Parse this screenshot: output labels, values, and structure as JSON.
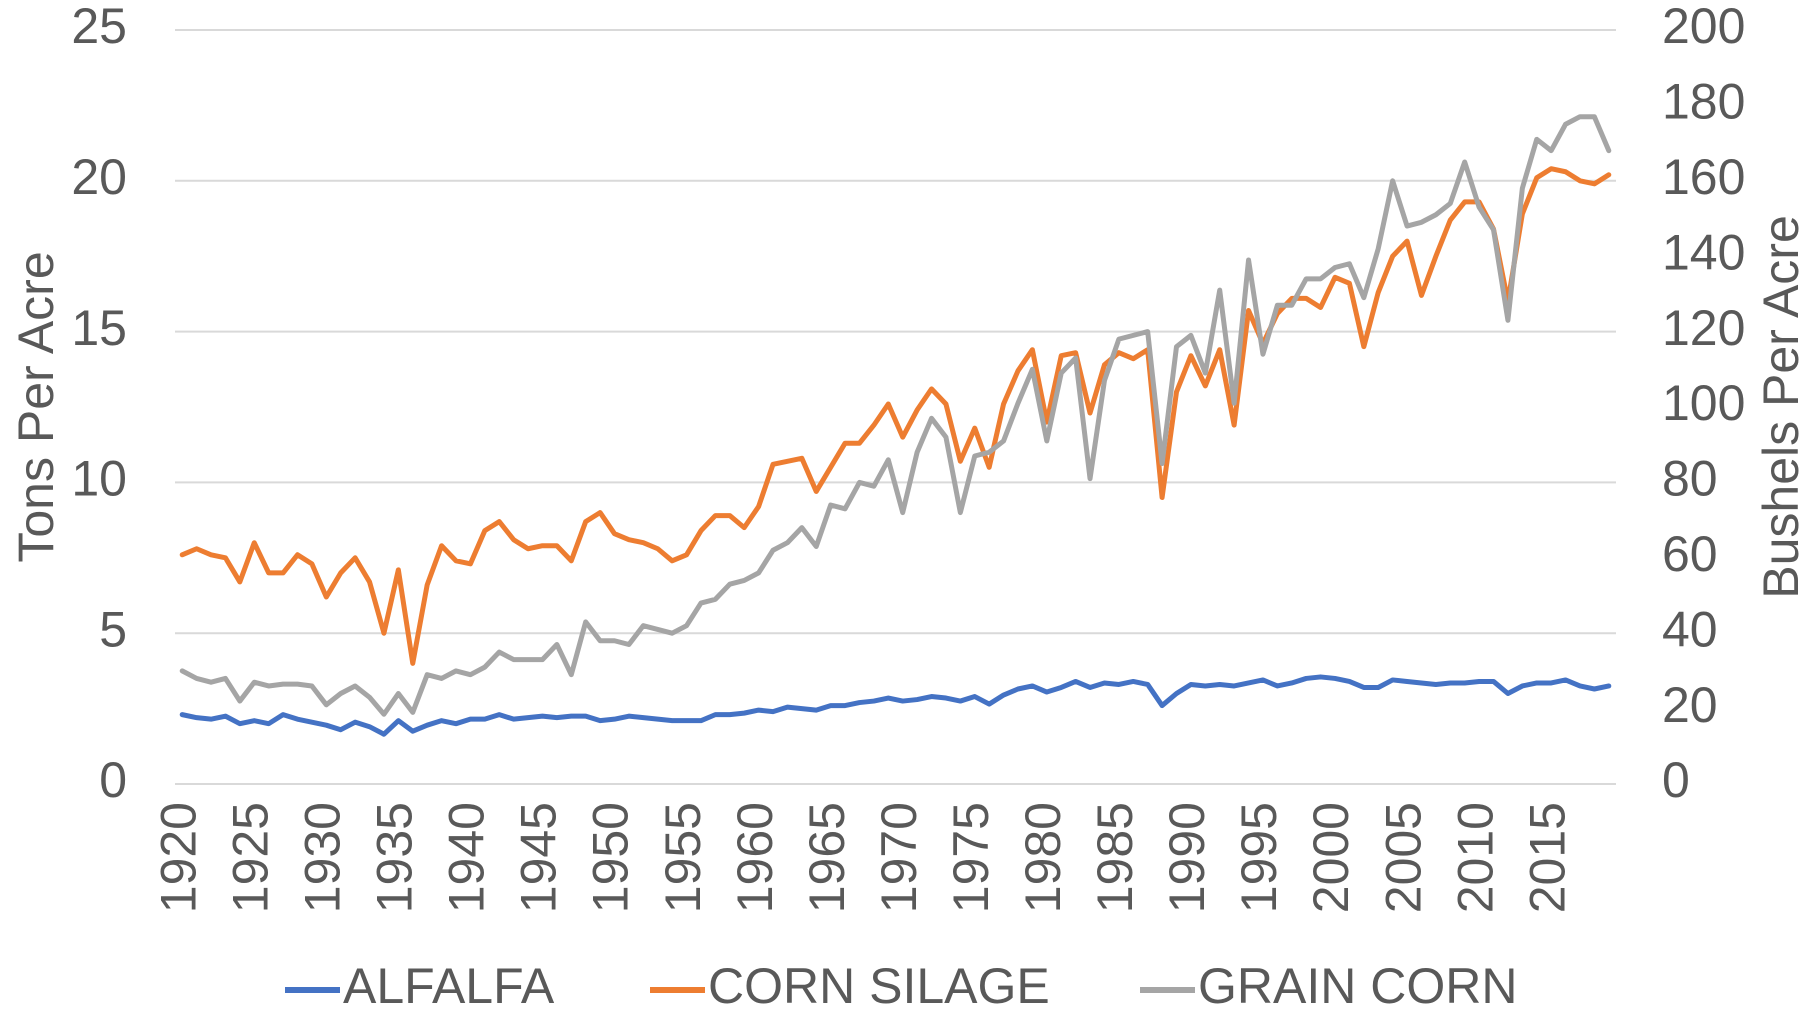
{
  "chart_data": {
    "type": "line",
    "ylabel": "Tons Per Acre",
    "y2label": "Bushels Per Acre",
    "x": [
      1920,
      1921,
      1922,
      1923,
      1924,
      1925,
      1926,
      1927,
      1928,
      1929,
      1930,
      1931,
      1932,
      1933,
      1934,
      1935,
      1936,
      1937,
      1938,
      1939,
      1940,
      1941,
      1942,
      1943,
      1944,
      1945,
      1946,
      1947,
      1948,
      1949,
      1950,
      1951,
      1952,
      1953,
      1954,
      1955,
      1956,
      1957,
      1958,
      1959,
      1960,
      1961,
      1962,
      1963,
      1964,
      1965,
      1966,
      1967,
      1968,
      1969,
      1970,
      1971,
      1972,
      1973,
      1974,
      1975,
      1976,
      1977,
      1978,
      1979,
      1980,
      1981,
      1982,
      1983,
      1984,
      1985,
      1986,
      1987,
      1988,
      1989,
      1990,
      1991,
      1992,
      1993,
      1994,
      1995,
      1996,
      1997,
      1998,
      1999,
      2000,
      2001,
      2002,
      2003,
      2004,
      2005,
      2006,
      2007,
      2008,
      2009,
      2010,
      2011,
      2012,
      2013,
      2014,
      2015,
      2016,
      2017,
      2018,
      2019
    ],
    "xlim": [
      1919.5,
      2019.5
    ],
    "xticks": [
      1920,
      1925,
      1930,
      1935,
      1940,
      1945,
      1950,
      1955,
      1960,
      1965,
      1970,
      1975,
      1980,
      1985,
      1990,
      1995,
      2000,
      2005,
      2010,
      2015
    ],
    "ylim": [
      0,
      25
    ],
    "yticks": [
      0,
      5,
      10,
      15,
      20,
      25
    ],
    "y2lim": [
      0,
      200
    ],
    "y2ticks": [
      0,
      20,
      40,
      60,
      80,
      100,
      120,
      140,
      160,
      180,
      200
    ],
    "grid": true,
    "legend": "bottom",
    "series": [
      {
        "name": "ALFALFA",
        "color": "#4472c4",
        "values": [
          2.3,
          2.2,
          2.15,
          2.25,
          2.0,
          2.1,
          2.0,
          2.3,
          2.15,
          2.05,
          1.95,
          1.8,
          2.05,
          1.9,
          1.65,
          2.1,
          1.75,
          1.95,
          2.1,
          2.0,
          2.15,
          2.15,
          2.3,
          2.15,
          2.2,
          2.25,
          2.2,
          2.25,
          2.25,
          2.1,
          2.15,
          2.25,
          2.2,
          2.15,
          2.1,
          2.1,
          2.1,
          2.3,
          2.3,
          2.35,
          2.45,
          2.4,
          2.55,
          2.5,
          2.45,
          2.6,
          2.6,
          2.7,
          2.75,
          2.85,
          2.75,
          2.8,
          2.9,
          2.85,
          2.75,
          2.9,
          2.65,
          2.95,
          3.15,
          3.25,
          3.05,
          3.2,
          3.4,
          3.2,
          3.35,
          3.3,
          3.4,
          3.3,
          2.6,
          3.0,
          3.3,
          3.25,
          3.3,
          3.25,
          3.35,
          3.45,
          3.25,
          3.35,
          3.5,
          3.55,
          3.5,
          3.4,
          3.2,
          3.2,
          3.45,
          3.4,
          3.35,
          3.3,
          3.35,
          3.35,
          3.4,
          3.4,
          3.0,
          3.25,
          3.35,
          3.35,
          3.45,
          3.25,
          3.15,
          3.25
        ]
      },
      {
        "name": "CORN SILAGE",
        "color": "#ed7d31",
        "values": [
          7.6,
          7.8,
          7.6,
          7.5,
          6.7,
          8.0,
          7.0,
          7.0,
          7.6,
          7.3,
          6.2,
          7.0,
          7.5,
          6.7,
          5.0,
          7.1,
          4.0,
          6.6,
          7.9,
          7.4,
          7.3,
          8.4,
          8.7,
          8.1,
          7.8,
          7.9,
          7.9,
          7.4,
          8.7,
          9.0,
          8.3,
          8.1,
          8.0,
          7.8,
          7.4,
          7.6,
          8.4,
          8.9,
          8.9,
          8.5,
          9.2,
          10.6,
          10.7,
          10.8,
          9.7,
          10.5,
          11.3,
          11.3,
          11.9,
          12.6,
          11.5,
          12.4,
          13.1,
          12.6,
          10.7,
          11.8,
          10.5,
          12.6,
          13.7,
          14.4,
          12.0,
          14.2,
          14.3,
          12.3,
          13.9,
          14.3,
          14.1,
          14.4,
          9.5,
          13.0,
          14.2,
          13.2,
          14.4,
          11.9,
          15.7,
          14.6,
          15.6,
          16.1,
          16.1,
          15.8,
          16.8,
          16.6,
          14.5,
          16.3,
          17.5,
          18.0,
          16.2,
          17.5,
          18.7,
          19.3,
          19.3,
          18.4,
          16.0,
          18.9,
          20.1,
          20.4,
          20.3,
          20.0,
          19.9,
          20.2
        ]
      },
      {
        "name": "GRAIN CORN",
        "color": "#a5a5a5",
        "axis": "y2",
        "values": [
          30,
          28,
          27,
          28,
          22,
          27,
          26,
          26.5,
          26.5,
          26,
          21,
          24,
          26,
          23,
          18.5,
          24,
          19,
          29,
          28,
          30,
          29,
          31,
          35,
          33,
          33,
          33,
          37,
          29,
          43,
          38,
          38,
          37,
          42,
          41,
          40,
          42,
          48,
          49,
          53,
          54,
          56,
          62,
          64,
          68,
          63,
          74,
          73,
          80,
          79,
          86,
          72,
          88,
          97,
          92,
          72,
          87,
          88,
          91,
          101,
          110,
          91,
          109,
          113,
          81,
          107,
          118,
          119,
          120,
          85,
          116,
          119,
          109,
          131,
          101,
          139,
          114,
          127,
          127,
          134,
          134,
          137,
          138,
          129,
          142,
          160,
          148,
          149,
          151,
          154,
          165,
          153,
          147,
          123,
          158,
          171,
          168,
          175,
          177,
          177,
          168
        ]
      }
    ]
  }
}
